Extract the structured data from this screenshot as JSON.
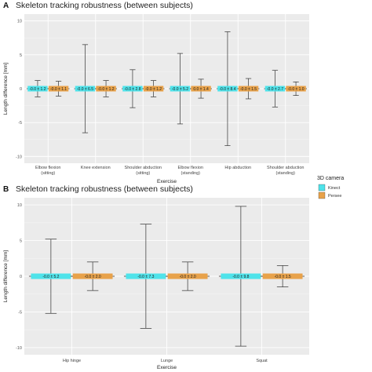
{
  "chart_data": [
    {
      "panel": "A",
      "type": "errorbar",
      "title": "Skeleton tracking robustness (between subjects)",
      "xlabel": "Exercise",
      "ylabel": "Length difference [mm]",
      "ylim": [
        -11,
        11
      ],
      "yticks": [
        -10,
        -5,
        0,
        5,
        10
      ],
      "grid": true,
      "categories": [
        "Elbow flexion\n(sitting)",
        "Knee extension",
        "Shoulder abduction\n(sitting)",
        "Elbow flexion\n(standing)",
        "Hip abduction",
        "Shoulder abduction\n(standing)"
      ],
      "series": [
        {
          "name": "Kinect",
          "color": "#4fe3ea",
          "mean": [
            0,
            0,
            0,
            0,
            0,
            0
          ],
          "sd": [
            1.2,
            6.5,
            2.8,
            5.2,
            8.4,
            2.7
          ],
          "labels": [
            "-0.0 ± 1.2",
            "-0.0 ± 6.5",
            "-0.0 ± 2.8",
            "-0.0 ± 5.2",
            "-0.0 ± 8.4",
            "-0.0 ± 2.7"
          ]
        },
        {
          "name": "Persee",
          "color": "#e8a24a",
          "mean": [
            0,
            0,
            0,
            0,
            0,
            0
          ],
          "sd": [
            1.1,
            1.2,
            1.2,
            1.4,
            1.5,
            1.0
          ],
          "labels": [
            "-0.0 ± 1.1",
            "-0.0 ± 1.2",
            "-0.0 ± 1.2",
            "0.0 ± 1.4",
            "-0.0 ± 1.5",
            "-0.0 ± 1.0"
          ]
        }
      ]
    },
    {
      "panel": "B",
      "type": "errorbar",
      "title": "Skeleton tracking robustness (between subjects)",
      "xlabel": "Exercise",
      "ylabel": "Length difference [mm]",
      "ylim": [
        -11,
        11
      ],
      "yticks": [
        -10,
        -5,
        0,
        5,
        10
      ],
      "grid": true,
      "categories": [
        "Hip hinge",
        "Lunge",
        "Squat"
      ],
      "series": [
        {
          "name": "Kinect",
          "color": "#4fe3ea",
          "mean": [
            0,
            0,
            0
          ],
          "sd": [
            5.2,
            7.3,
            9.8
          ],
          "labels": [
            "-0.0 ± 5.2",
            "-0.0 ± 7.3",
            "-0.0 ± 9.8"
          ]
        },
        {
          "name": "Persee",
          "color": "#e8a24a",
          "mean": [
            0,
            0,
            0
          ],
          "sd": [
            2.0,
            2.0,
            1.5
          ],
          "labels": [
            "-0.0 ± 2.0",
            "-0.0 ± 2.0",
            "-0.0 ± 1.5"
          ]
        }
      ]
    }
  ],
  "legend": {
    "title": "3D camera",
    "items": [
      {
        "name": "Kinect",
        "color": "#4fe3ea"
      },
      {
        "name": "Persee",
        "color": "#e8a24a"
      }
    ],
    "placement": "right"
  }
}
